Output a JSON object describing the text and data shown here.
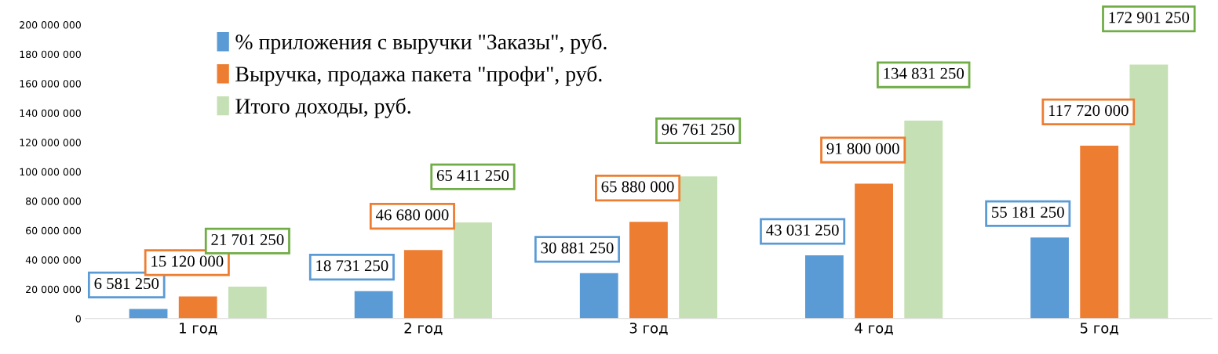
{
  "chart_data": {
    "type": "bar",
    "categories": [
      "1 год",
      "2 год",
      "3 год",
      "4 год",
      "5 год"
    ],
    "series": [
      {
        "name": "% приложения с выручки \"Заказы\", руб.",
        "color": "#5b9bd5",
        "values": [
          6581250,
          18731250,
          30881250,
          43031250,
          55181250
        ],
        "value_labels": [
          "6 581 250",
          "18 731 250",
          "30 881 250",
          "43 031 250",
          "55 181 250"
        ]
      },
      {
        "name": "Выручка, продажа пакета \"профи\", руб.",
        "color": "#ed7d31",
        "values": [
          15120000,
          46680000,
          65880000,
          91800000,
          117720000
        ],
        "value_labels": [
          "15 120 000",
          "46 680 000",
          "65 880 000",
          "91 800 000",
          "117 720 000"
        ]
      },
      {
        "name": "Итого доходы, руб.",
        "color": "#c5e0b4",
        "values": [
          21701250,
          65411250,
          96761250,
          134831250,
          172901250
        ],
        "value_labels": [
          "21 701 250",
          "65 411 250",
          "96 761 250",
          "134 831 250",
          "172 901 250"
        ]
      }
    ],
    "ylim": [
      0,
      200000000
    ],
    "yticks": [
      0,
      {
        "value": 20000000,
        "label": "20 000 000"
      },
      {
        "value": 40000000,
        "label": "40 000 000"
      },
      {
        "value": 60000000,
        "label": "60 000 000"
      },
      {
        "value": 80000000,
        "label": "80 000 000"
      },
      {
        "value": 100000000,
        "label": "100 000 000"
      },
      {
        "value": 120000000,
        "label": "120 000 000"
      },
      {
        "value": 140000000,
        "label": "140 000 000"
      },
      {
        "value": 160000000,
        "label": "160 000 000"
      },
      {
        "value": 180000000,
        "label": "180 000 000"
      },
      {
        "value": 200000000,
        "label": "200 000 000"
      }
    ],
    "grid": false,
    "legend": "top left"
  }
}
